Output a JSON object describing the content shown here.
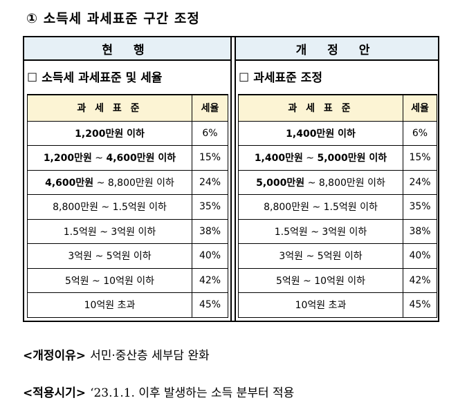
{
  "title": "① 소득세 과세표준 구간 조정",
  "current": {
    "header": "현 행",
    "subtitle_box": "☐",
    "subtitle": "소득세 과세표준 및 세율",
    "col_bracket": "과 세 표 준",
    "col_rate": "세율",
    "rows": [
      {
        "from": "",
        "from_bold": "",
        "tilde": "",
        "to": "",
        "to_bold": "1,200만원 이하",
        "rate": "6%"
      },
      {
        "from": "",
        "from_bold": "1,200만원",
        "tilde": " ~ ",
        "to": "",
        "to_bold": "4,600만원 이하",
        "rate": "15%"
      },
      {
        "from": "",
        "from_bold": "4,600만원",
        "tilde": " ~ ",
        "to": "8,800만원 이하",
        "to_bold": "",
        "rate": "24%"
      },
      {
        "from": "8,800만원",
        "from_bold": "",
        "tilde": " ~ ",
        "to": "1.5억원 이하",
        "to_bold": "",
        "rate": "35%"
      },
      {
        "from": "1.5억원",
        "from_bold": "",
        "tilde": " ~ ",
        "to": "3억원 이하",
        "to_bold": "",
        "rate": "38%"
      },
      {
        "from": "3억원",
        "from_bold": "",
        "tilde": " ~ ",
        "to": "5억원 이하",
        "to_bold": "",
        "rate": "40%"
      },
      {
        "from": "5억원",
        "from_bold": "",
        "tilde": " ~ ",
        "to": "10억원 이하",
        "to_bold": "",
        "rate": "42%"
      },
      {
        "from": "",
        "from_bold": "",
        "tilde": "",
        "to": "10억원 초과",
        "to_bold": "",
        "rate": "45%"
      }
    ]
  },
  "proposed": {
    "header": "개 정 안",
    "subtitle_box": "☐",
    "subtitle": "과세표준 조정",
    "col_bracket": "과 세 표 준",
    "col_rate": "세율",
    "rows": [
      {
        "from": "",
        "from_bold": "",
        "tilde": "",
        "to": "",
        "to_bold": "1,400만원 이하",
        "rate": "6%"
      },
      {
        "from": "",
        "from_bold": "1,400만원",
        "tilde": " ~ ",
        "to": "",
        "to_bold": "5,000만원 이하",
        "rate": "15%"
      },
      {
        "from": "",
        "from_bold": "5,000만원",
        "tilde": " ~ ",
        "to": "8,800만원 이하",
        "to_bold": "",
        "rate": "24%"
      },
      {
        "from": "8,800만원",
        "from_bold": "",
        "tilde": " ~ ",
        "to": "1.5억원 이하",
        "to_bold": "",
        "rate": "35%"
      },
      {
        "from": "1.5억원",
        "from_bold": "",
        "tilde": " ~ ",
        "to": "3억원 이하",
        "to_bold": "",
        "rate": "38%"
      },
      {
        "from": "3억원",
        "from_bold": "",
        "tilde": " ~ ",
        "to": "5억원 이하",
        "to_bold": "",
        "rate": "40%"
      },
      {
        "from": "5억원",
        "from_bold": "",
        "tilde": " ~ ",
        "to": "10억원 이하",
        "to_bold": "",
        "rate": "42%"
      },
      {
        "from": "",
        "from_bold": "",
        "tilde": "",
        "to": "10억원 초과",
        "to_bold": "",
        "rate": "45%"
      }
    ]
  },
  "reason": {
    "label": "<개정이유>",
    "value": "서민·중산층 세부담 완화"
  },
  "effective": {
    "label": "<적용시기>",
    "value": "‘23.1.1. 이후 발생하는 소득 분부터 적용"
  }
}
